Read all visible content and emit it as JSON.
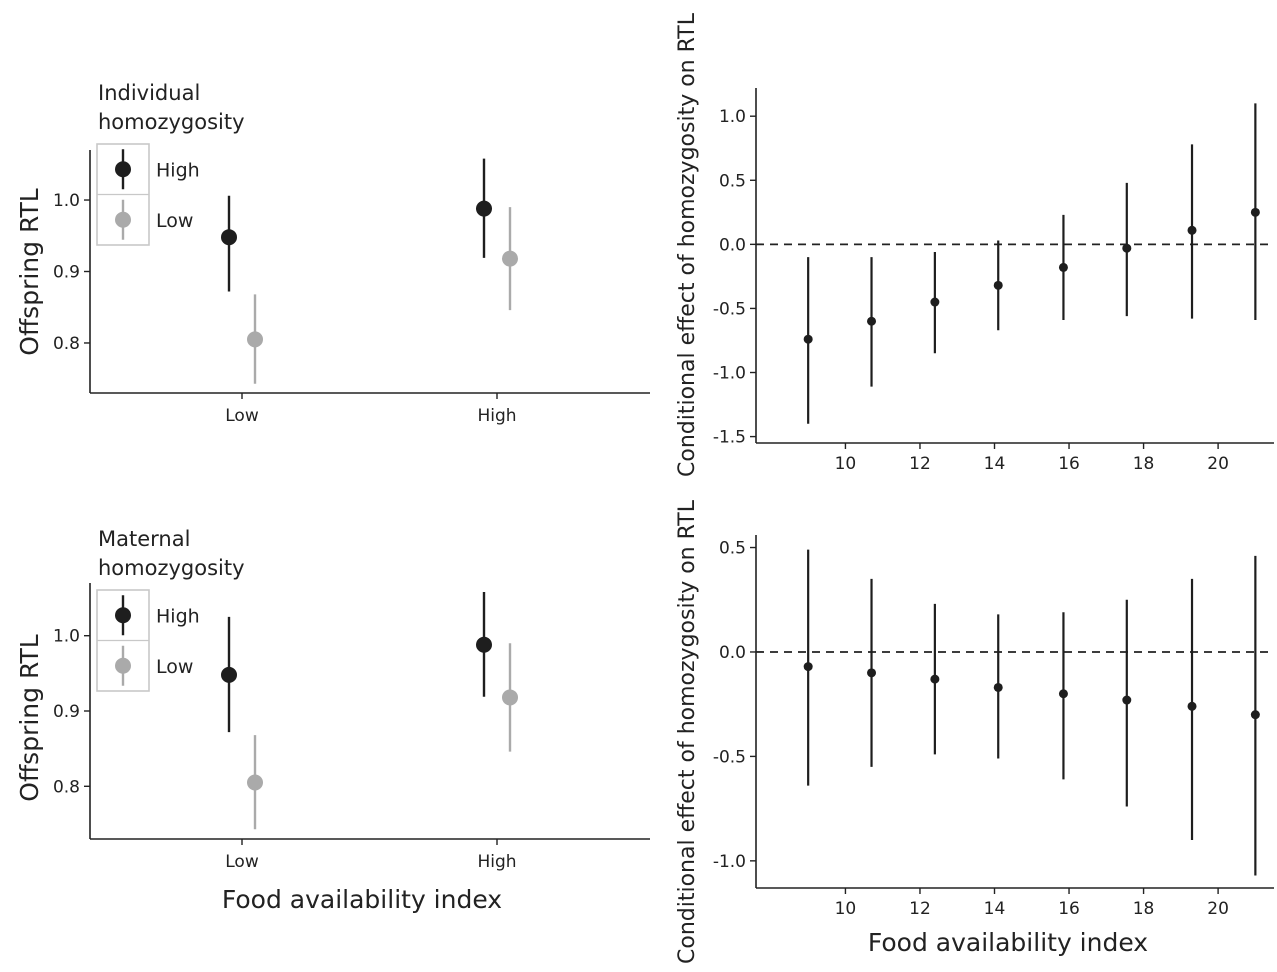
{
  "charts": [
    {
      "type": "scatter",
      "ylabel": "Offspring RTL",
      "xlabel": "",
      "categories": [
        "Low",
        "High"
      ],
      "ylim": [
        0.73,
        1.07
      ],
      "yticks": [
        "0.8",
        "0.9",
        "1.0"
      ],
      "yticks_values": [
        0.8,
        0.9,
        1.0
      ],
      "legend": {
        "title_lines": [
          "Individual",
          "homozygosity"
        ],
        "placement": "top-left"
      },
      "series": [
        {
          "name": "High",
          "color": "#1e1e1e",
          "points": [
            {
              "x": "Low",
              "y": 0.948,
              "lo": 0.872,
              "hi": 1.006
            },
            {
              "x": "High",
              "y": 0.988,
              "lo": 0.919,
              "hi": 1.058
            }
          ]
        },
        {
          "name": "Low",
          "color": "#aaaaaa",
          "points": [
            {
              "x": "Low",
              "y": 0.805,
              "lo": 0.743,
              "hi": 0.868
            },
            {
              "x": "High",
              "y": 0.918,
              "lo": 0.846,
              "hi": 0.99
            }
          ]
        }
      ]
    },
    {
      "type": "scatter",
      "ylabel": "Conditional effect of  homozygosity on RTL",
      "xlabel": "",
      "xlim": [
        7.6,
        21.5
      ],
      "ylim": [
        -1.55,
        1.22
      ],
      "xticks": [
        "10",
        "12",
        "14",
        "16",
        "18",
        "20"
      ],
      "xticks_values": [
        10,
        12,
        14,
        16,
        18,
        20
      ],
      "yticks": [
        "-1.5",
        "-1.0",
        "-0.5",
        "0.0",
        "0.5",
        "1.0"
      ],
      "yticks_values": [
        -1.5,
        -1.0,
        -0.5,
        0.0,
        0.5,
        1.0
      ],
      "reference_line": 0,
      "series": [
        {
          "color": "#1e1e1e",
          "points": [
            {
              "x": 9.0,
              "y": -0.74,
              "lo": -1.4,
              "hi": -0.1
            },
            {
              "x": 10.7,
              "y": -0.6,
              "lo": -1.11,
              "hi": -0.1
            },
            {
              "x": 12.4,
              "y": -0.45,
              "lo": -0.85,
              "hi": -0.06
            },
            {
              "x": 14.1,
              "y": -0.32,
              "lo": -0.67,
              "hi": 0.03
            },
            {
              "x": 15.85,
              "y": -0.18,
              "lo": -0.59,
              "hi": 0.23
            },
            {
              "x": 17.55,
              "y": -0.03,
              "lo": -0.56,
              "hi": 0.48
            },
            {
              "x": 19.3,
              "y": 0.11,
              "lo": -0.58,
              "hi": 0.78
            },
            {
              "x": 21.0,
              "y": 0.25,
              "lo": -0.59,
              "hi": 1.1
            }
          ]
        }
      ]
    },
    {
      "type": "scatter",
      "ylabel": "Offspring RTL",
      "xlabel": "Food availability index",
      "categories": [
        "Low",
        "High"
      ],
      "ylim": [
        0.73,
        1.07
      ],
      "yticks": [
        "0.8",
        "0.9",
        "1.0"
      ],
      "yticks_values": [
        0.8,
        0.9,
        1.0
      ],
      "legend": {
        "title_lines": [
          "Maternal",
          "homozygosity"
        ],
        "placement": "top-left"
      },
      "series": [
        {
          "name": "High",
          "color": "#1e1e1e",
          "points": [
            {
              "x": "Low",
              "y": 0.948,
              "lo": 0.872,
              "hi": 1.025
            },
            {
              "x": "High",
              "y": 0.988,
              "lo": 0.919,
              "hi": 1.058
            }
          ]
        },
        {
          "name": "Low",
          "color": "#aaaaaa",
          "points": [
            {
              "x": "Low",
              "y": 0.805,
              "lo": 0.743,
              "hi": 0.868
            },
            {
              "x": "High",
              "y": 0.918,
              "lo": 0.846,
              "hi": 0.99
            }
          ]
        }
      ]
    },
    {
      "type": "scatter",
      "ylabel": "Conditional effect of  homozygosity on RTL",
      "xlabel": "Food availability index",
      "xlim": [
        7.6,
        21.5
      ],
      "ylim": [
        -1.13,
        0.56
      ],
      "xticks": [
        "10",
        "12",
        "14",
        "16",
        "18",
        "20"
      ],
      "xticks_values": [
        10,
        12,
        14,
        16,
        18,
        20
      ],
      "yticks": [
        "-1.0",
        "-0.5",
        "0.0",
        "0.5"
      ],
      "yticks_values": [
        -1.0,
        -0.5,
        0.0,
        0.5
      ],
      "reference_line": 0,
      "series": [
        {
          "color": "#1e1e1e",
          "points": [
            {
              "x": 9.0,
              "y": -0.07,
              "lo": -0.64,
              "hi": 0.49
            },
            {
              "x": 10.7,
              "y": -0.1,
              "lo": -0.55,
              "hi": 0.35
            },
            {
              "x": 12.4,
              "y": -0.13,
              "lo": -0.49,
              "hi": 0.23
            },
            {
              "x": 14.1,
              "y": -0.17,
              "lo": -0.51,
              "hi": 0.18
            },
            {
              "x": 15.85,
              "y": -0.2,
              "lo": -0.61,
              "hi": 0.19
            },
            {
              "x": 17.55,
              "y": -0.23,
              "lo": -0.74,
              "hi": 0.25
            },
            {
              "x": 19.3,
              "y": -0.26,
              "lo": -0.9,
              "hi": 0.35
            },
            {
              "x": 21.0,
              "y": -0.3,
              "lo": -1.07,
              "hi": 0.46
            }
          ]
        }
      ]
    }
  ]
}
